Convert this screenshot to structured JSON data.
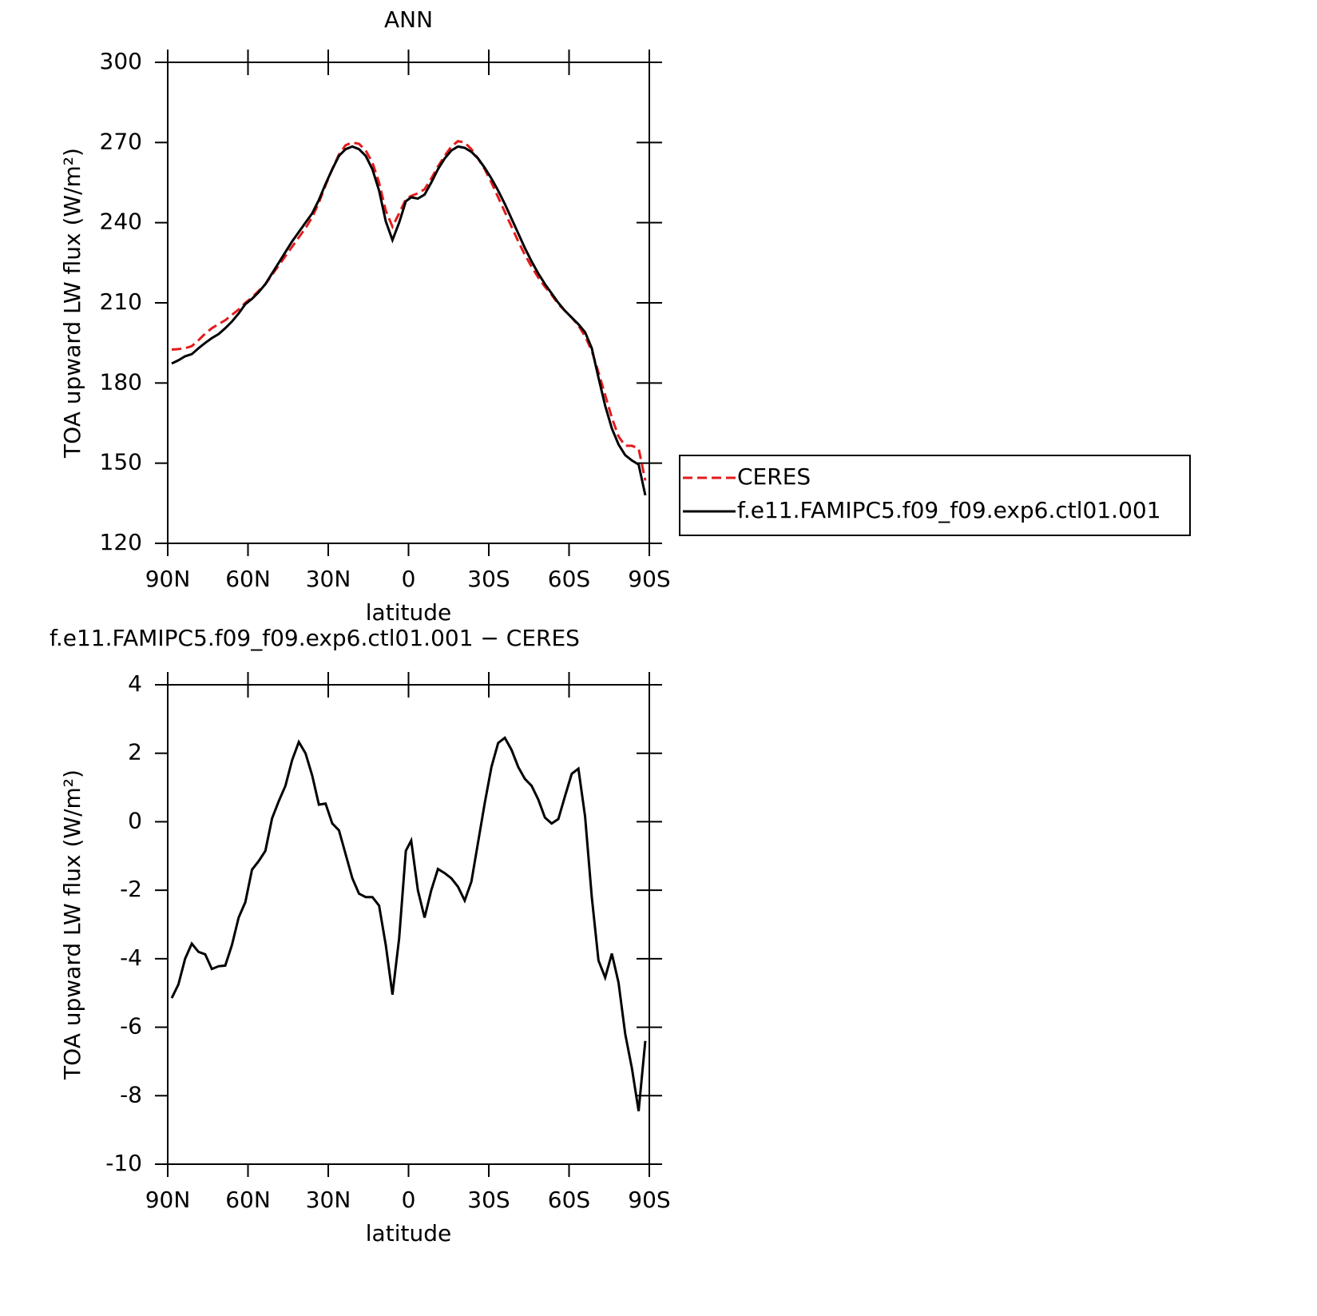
{
  "chart_data": [
    {
      "type": "line",
      "title": "ANN",
      "xlabel": "latitude",
      "ylabel": "TOA upward LW flux (W/m²)",
      "x": [
        88.5,
        86,
        83.5,
        81,
        78.5,
        76,
        73.5,
        71,
        68.5,
        66,
        63.5,
        61,
        58.5,
        56,
        53.5,
        51,
        48.5,
        46,
        43.5,
        41,
        38.5,
        36,
        33.5,
        31,
        28.5,
        26,
        23.5,
        21,
        18.5,
        16,
        13.5,
        11,
        8.5,
        6,
        3.5,
        1,
        -1,
        -3.5,
        -6,
        -8.5,
        -11,
        -13.5,
        -16,
        -18.5,
        -21,
        -23.5,
        -26,
        -28.5,
        -31,
        -33.5,
        -36,
        -38.5,
        -41,
        -43.5,
        -46,
        -48.5,
        -51,
        -53.5,
        -56,
        -58.5,
        -61,
        -63.5,
        -66,
        -68.5,
        -71,
        -73.5,
        -76,
        -78.5,
        -81,
        -83.5,
        -86,
        -88.5
      ],
      "series": [
        {
          "name": "CERES",
          "color": "#e41a1c",
          "line_style": "dashed",
          "values": [
            192.5,
            192.7,
            193,
            193.8,
            196,
            198.5,
            200.5,
            202,
            203.5,
            205.5,
            207.5,
            210,
            212,
            214.5,
            217,
            220.5,
            224,
            227.5,
            231,
            234.5,
            238,
            242,
            247.5,
            254,
            260,
            265.5,
            269,
            270,
            269.5,
            267,
            262.5,
            255,
            244.5,
            238.5,
            243.5,
            248.8,
            250,
            251,
            252.5,
            256.5,
            261,
            265,
            268.5,
            270.5,
            270,
            267.5,
            264,
            260,
            255,
            249.5,
            244,
            238.5,
            233,
            228,
            223.5,
            219.5,
            216,
            213,
            209.5,
            207,
            204.5,
            201.5,
            197.5,
            192,
            184,
            175.5,
            167,
            160,
            156.5,
            156.5,
            155.5,
            143.5
          ]
        },
        {
          "name": "f.e11.FAMIPC5.f09_f09.exp6.ctl01.001",
          "color": "#000000",
          "line_style": "solid",
          "values": [
            187.3,
            188.5,
            190,
            190.8,
            193,
            195,
            196.8,
            198.3,
            200.5,
            203,
            206,
            209.5,
            211.5,
            214,
            217,
            221,
            225,
            229,
            233,
            236.5,
            240,
            243.5,
            248.5,
            254.5,
            260,
            265,
            267.5,
            268.5,
            267.5,
            265,
            260,
            252,
            240.5,
            233.5,
            240,
            248,
            249.5,
            249,
            250.5,
            255,
            260,
            264,
            267,
            268.5,
            268,
            266.5,
            264,
            260.5,
            256.5,
            252,
            247,
            241.5,
            236,
            230.5,
            225.5,
            221,
            217,
            213.5,
            210,
            207,
            204.5,
            202,
            199,
            193,
            182,
            171.5,
            163,
            157,
            153,
            151,
            149.5,
            138
          ]
        }
      ],
      "xlim": [
        90,
        -90
      ],
      "xticks": [
        {
          "value": 90,
          "label": "90N"
        },
        {
          "value": 60,
          "label": "60N"
        },
        {
          "value": 30,
          "label": "30N"
        },
        0,
        {
          "value": -30,
          "label": "30S"
        },
        {
          "value": -60,
          "label": "60S"
        },
        {
          "value": -90,
          "label": "90S"
        }
      ],
      "ylim": [
        120,
        300
      ],
      "yticks": [
        120,
        150,
        180,
        210,
        240,
        270,
        300
      ],
      "legend": "right"
    },
    {
      "type": "line",
      "title": "f.e11.FAMIPC5.f09_f09.exp6.ctl01.001 − CERES",
      "xlabel": "latitude",
      "ylabel": "TOA upward LW flux (W/m²)",
      "x": [
        88.5,
        86,
        83.5,
        81,
        78.5,
        76,
        73.5,
        71,
        68.5,
        66,
        63.5,
        61,
        58.5,
        56,
        53.5,
        51,
        48.5,
        46,
        43.5,
        41,
        38.5,
        36,
        33.5,
        31,
        28.5,
        26,
        23.5,
        21,
        18.5,
        16,
        13.5,
        11,
        8.5,
        6,
        3.5,
        1,
        -1,
        -3.5,
        -6,
        -8.5,
        -11,
        -13.5,
        -16,
        -18.5,
        -21,
        -23.5,
        -26,
        -28.5,
        -31,
        -33.5,
        -36,
        -38.5,
        -41,
        -43.5,
        -46,
        -48.5,
        -51,
        -53.5,
        -56,
        -58.5,
        -61,
        -63.5,
        -66,
        -68.5,
        -71,
        -73.5,
        -76,
        -78.5,
        -81,
        -83.5,
        -86,
        -88.5
      ],
      "values": [
        -5.15,
        -4.75,
        -4.0,
        -3.56,
        -3.8,
        -3.87,
        -4.3,
        -4.22,
        -4.2,
        -3.6,
        -2.8,
        -2.35,
        -1.4,
        -1.15,
        -0.85,
        0.1,
        0.6,
        1.05,
        1.8,
        2.33,
        2.0,
        1.35,
        0.5,
        0.53,
        -0.05,
        -0.25,
        -0.95,
        -1.65,
        -2.1,
        -2.2,
        -2.2,
        -2.45,
        -3.6,
        -5.05,
        -3.4,
        -0.85,
        -0.55,
        -2.0,
        -2.8,
        -2.0,
        -1.38,
        -1.5,
        -1.65,
        -1.9,
        -2.3,
        -1.75,
        -0.6,
        0.55,
        1.6,
        2.3,
        2.45,
        2.1,
        1.6,
        1.25,
        1.05,
        0.65,
        0.12,
        -0.05,
        0.08,
        0.75,
        1.4,
        1.55,
        0.15,
        -2.2,
        -4.05,
        -4.55,
        -3.85,
        -4.7,
        -6.2,
        -7.2,
        -8.45,
        -6.4
      ],
      "color": "#000000",
      "xlim": [
        90,
        -90
      ],
      "xticks": [
        {
          "value": 90,
          "label": "90N"
        },
        {
          "value": 60,
          "label": "60N"
        },
        {
          "value": 30,
          "label": "30N"
        },
        0,
        {
          "value": -30,
          "label": "30S"
        },
        {
          "value": -60,
          "label": "60S"
        },
        {
          "value": -90,
          "label": "90S"
        }
      ],
      "ylim": [
        -10,
        4
      ],
      "yticks": [
        -10,
        -8,
        -6,
        -4,
        -2,
        0,
        2,
        4
      ]
    }
  ]
}
